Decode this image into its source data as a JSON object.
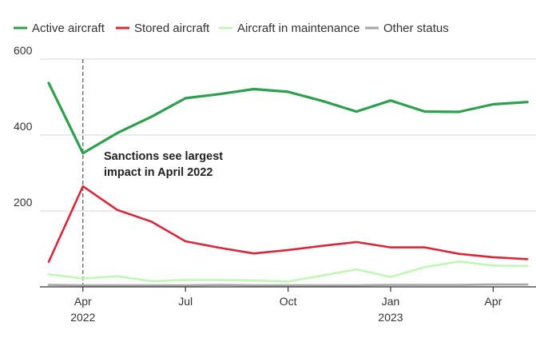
{
  "chart_data": {
    "type": "line",
    "title": "",
    "xlabel": "",
    "ylabel": "",
    "x": [
      "Mar 2022",
      "Apr 2022",
      "May 2022",
      "Jun 2022",
      "Jul 2022",
      "Aug 2022",
      "Sep 2022",
      "Oct 2022",
      "Nov 2022",
      "Dec 2022",
      "Jan 2023",
      "Feb 2023",
      "Mar 2023",
      "Apr 2023",
      "May 2023"
    ],
    "ylim": [
      0,
      600
    ],
    "yticks": [
      {
        "value": 200,
        "label": "200"
      },
      {
        "value": 400,
        "label": "400"
      },
      {
        "value": 600,
        "label": "600"
      }
    ],
    "xticks": [
      {
        "index": 1,
        "label": "Apr",
        "sublabel": "2022"
      },
      {
        "index": 4,
        "label": "Jul",
        "sublabel": ""
      },
      {
        "index": 7,
        "label": "Oct",
        "sublabel": ""
      },
      {
        "index": 10,
        "label": "Jan",
        "sublabel": "2023"
      },
      {
        "index": 13,
        "label": "Apr",
        "sublabel": ""
      }
    ],
    "grid": true,
    "legend_position": "top-left",
    "series": [
      {
        "name": "Active aircraft",
        "color": "#2e9e4f",
        "values": [
          537,
          352,
          405,
          448,
          497,
          508,
          521,
          514,
          490,
          462,
          491,
          462,
          461,
          481,
          487
        ]
      },
      {
        "name": "Stored aircraft",
        "color": "#d9273a",
        "values": [
          66,
          265,
          203,
          172,
          120,
          103,
          88,
          97,
          108,
          118,
          104,
          104,
          87,
          78,
          73
        ]
      },
      {
        "name": "Aircraft in maintenance",
        "color": "#c2f5b8",
        "values": [
          33,
          22,
          28,
          15,
          18,
          18,
          17,
          14,
          30,
          46,
          26,
          52,
          67,
          56,
          55
        ]
      },
      {
        "name": "Other status",
        "color": "#a6a6a6",
        "values": [
          5,
          4,
          4,
          4,
          4,
          5,
          4,
          4,
          4,
          4,
          5,
          5,
          5,
          6,
          6
        ]
      }
    ],
    "annotations": [
      {
        "index": 1,
        "lines": [
          "Sanctions see largest",
          "impact in April 2022"
        ],
        "marker": "dashed-vertical-line"
      }
    ]
  }
}
